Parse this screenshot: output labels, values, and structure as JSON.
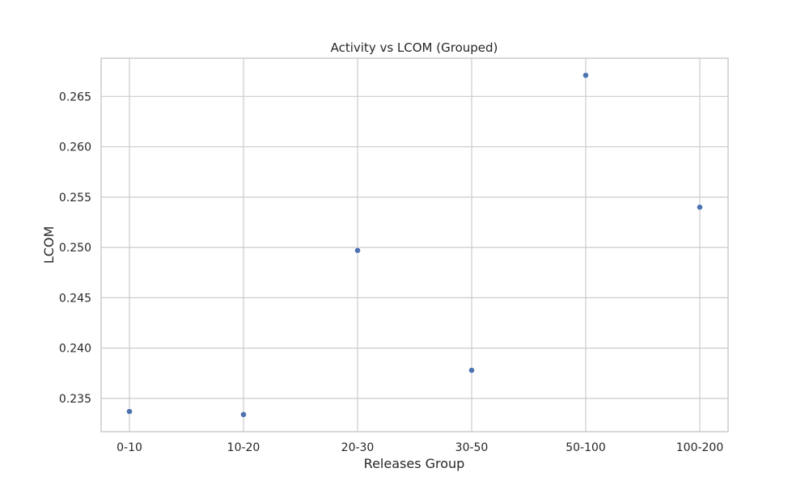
{
  "chart_data": {
    "type": "scatter",
    "title": "Activity vs LCOM (Grouped)",
    "xlabel": "Releases Group",
    "ylabel": "LCOM",
    "categories": [
      "0-10",
      "10-20",
      "20-30",
      "30-50",
      "50-100",
      "100-200"
    ],
    "values": [
      0.2337,
      0.2334,
      0.2497,
      0.2378,
      0.2671,
      0.254
    ],
    "yticks": [
      0.235,
      0.24,
      0.245,
      0.25,
      0.255,
      0.26,
      0.265
    ],
    "ytick_labels": [
      "0.235",
      "0.240",
      "0.245",
      "0.250",
      "0.255",
      "0.260",
      "0.265"
    ],
    "ylim": [
      0.2317,
      0.2688
    ],
    "grid": true,
    "colors": {
      "point": "#4c72b0",
      "grid": "#cccccc",
      "text": "#262626"
    }
  }
}
